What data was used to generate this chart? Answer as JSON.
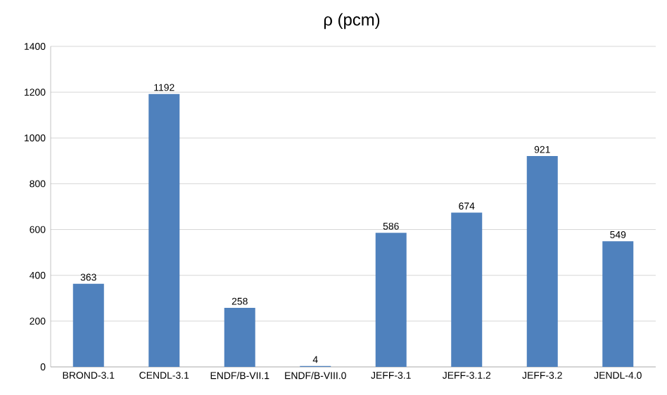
{
  "chart_data": {
    "type": "bar",
    "title": "ρ (pcm)",
    "categories": [
      "BROND-3.1",
      "CENDL-3.1",
      "ENDF/B-VII.1",
      "ENDF/B-VIII.0",
      "JEFF-3.1",
      "JEFF-3.1.2",
      "JEFF-3.2",
      "JENDL-4.0"
    ],
    "values": [
      363,
      1192,
      258,
      4,
      586,
      674,
      921,
      549
    ],
    "color": "#4f81bd",
    "ylim": [
      0,
      1400
    ],
    "yticks": [
      0,
      200,
      400,
      600,
      800,
      1000,
      1200,
      1400
    ],
    "grid": "y",
    "data_labels": true
  }
}
